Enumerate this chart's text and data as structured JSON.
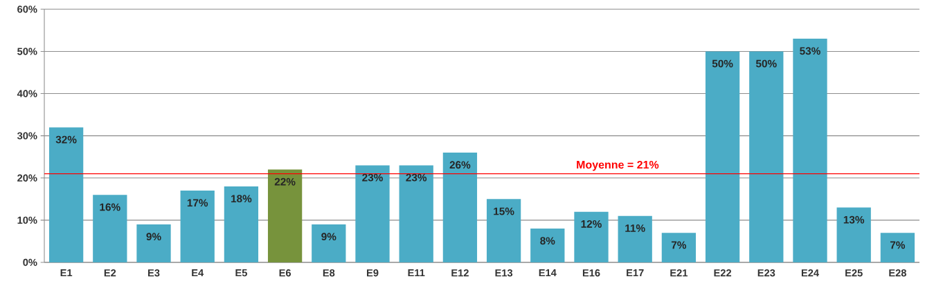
{
  "chart_data": {
    "type": "bar",
    "categories": [
      "E1",
      "E2",
      "E3",
      "E4",
      "E5",
      "E6",
      "E8",
      "E9",
      "E11",
      "E12",
      "E13",
      "E14",
      "E16",
      "E17",
      "E21",
      "E22",
      "E23",
      "E24",
      "E25",
      "E28"
    ],
    "values": [
      32,
      16,
      9,
      17,
      18,
      22,
      9,
      23,
      23,
      26,
      15,
      8,
      12,
      11,
      7,
      50,
      50,
      53,
      13,
      7
    ],
    "value_labels": [
      "32%",
      "16%",
      "9%",
      "17%",
      "18%",
      "22%",
      "9%",
      "23%",
      "23%",
      "26%",
      "15%",
      "8%",
      "12%",
      "11%",
      "7%",
      "50%",
      "50%",
      "53%",
      "13%",
      "7%"
    ],
    "colors": [
      "#4bacc6",
      "#4bacc6",
      "#4bacc6",
      "#4bacc6",
      "#4bacc6",
      "#77933c",
      "#4bacc6",
      "#4bacc6",
      "#4bacc6",
      "#4bacc6",
      "#4bacc6",
      "#4bacc6",
      "#4bacc6",
      "#4bacc6",
      "#4bacc6",
      "#4bacc6",
      "#4bacc6",
      "#4bacc6",
      "#4bacc6",
      "#4bacc6"
    ],
    "ylim": [
      0,
      60
    ],
    "yticks": [
      {
        "value": 0,
        "label": "0%"
      },
      {
        "value": 10,
        "label": "10%"
      },
      {
        "value": 20,
        "label": "20%"
      },
      {
        "value": 30,
        "label": "30%"
      },
      {
        "value": 40,
        "label": "40%"
      },
      {
        "value": 50,
        "label": "50%"
      },
      {
        "value": 60,
        "label": "60%"
      }
    ],
    "grid": "y",
    "ref_lines": [
      {
        "axis": "y",
        "value": 21,
        "label": "Moyenne = 21%",
        "color": "#ff0000"
      }
    ]
  }
}
